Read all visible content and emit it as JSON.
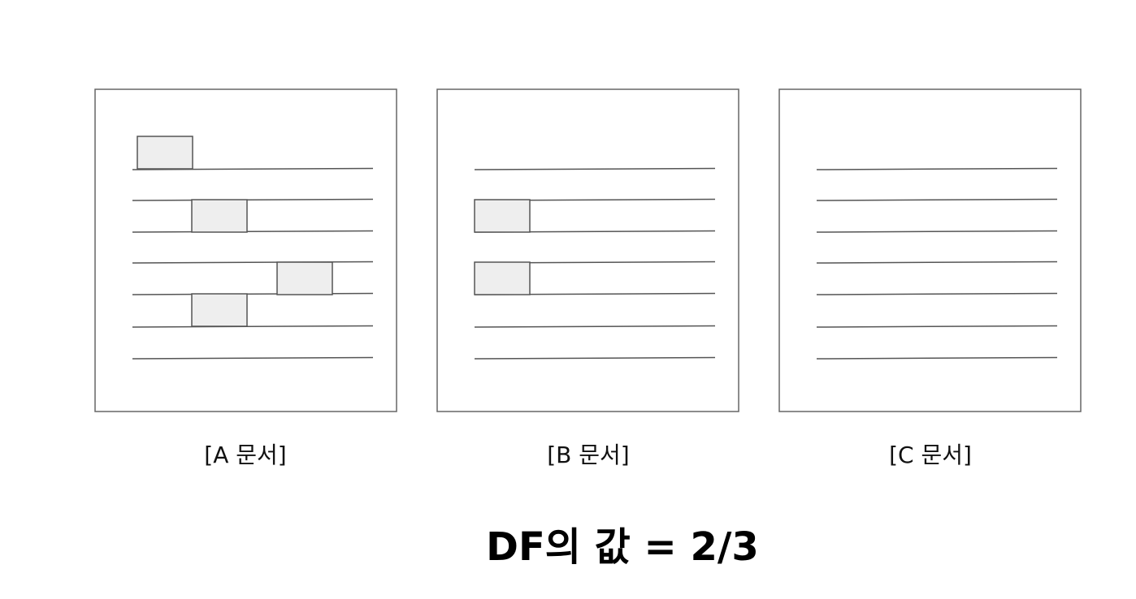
{
  "documents": [
    {
      "id": "A",
      "caption": "[A 문서]",
      "line_count": 7,
      "highlighted_term_count": 4
    },
    {
      "id": "B",
      "caption": "[B 문서]",
      "line_count": 7,
      "highlighted_term_count": 2
    },
    {
      "id": "C",
      "caption": "[C 문서]",
      "line_count": 7,
      "highlighted_term_count": 0
    }
  ],
  "formula": "DF의 값 = 2/3",
  "colors": {
    "frame_stroke": "#666666",
    "line_stroke": "#555555",
    "term_fill": "#eeeeee",
    "term_stroke": "#555555",
    "text": "#111111"
  }
}
